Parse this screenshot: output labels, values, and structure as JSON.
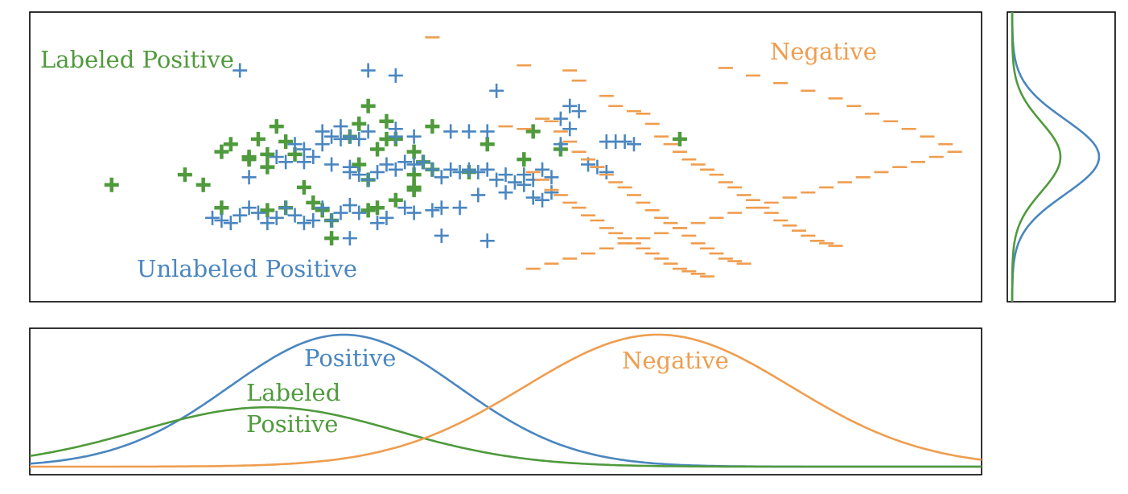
{
  "colors": {
    "labeled_positive": "#4f9a3c",
    "unlabeled_positive": "#4a86c0",
    "negative": "#ef9d4f",
    "axes": "#000000"
  },
  "chart_data": [
    {
      "type": "scatter",
      "grid": false,
      "ticks": false,
      "xlim": [
        0,
        100
      ],
      "ylim": [
        0,
        100
      ],
      "annotations": [
        {
          "text": "Labeled Positive",
          "series": "labeled_positive"
        },
        {
          "text": "Unlabeled Positive",
          "series": "unlabeled_positive"
        },
        {
          "text": "Negative",
          "series": "negative"
        }
      ],
      "series": [
        {
          "key": "labeled_positive",
          "marker": "plus-bold",
          "points": [
            [
              7,
              39
            ],
            [
              15,
              43
            ],
            [
              17,
              39
            ],
            [
              19,
              30
            ],
            [
              24,
              29
            ],
            [
              26,
              30
            ],
            [
              19,
              52
            ],
            [
              22,
              50
            ],
            [
              20,
              55
            ],
            [
              23,
              57
            ],
            [
              24,
              51
            ],
            [
              25,
              62
            ],
            [
              26,
              56
            ],
            [
              27,
              51
            ],
            [
              24,
              46
            ],
            [
              22,
              49
            ],
            [
              28,
              38
            ],
            [
              29,
              32
            ],
            [
              30,
              29
            ],
            [
              31,
              25
            ],
            [
              31,
              18
            ],
            [
              34,
              47
            ],
            [
              35,
              41
            ],
            [
              36,
              53
            ],
            [
              37,
              57
            ],
            [
              38,
              57
            ],
            [
              33,
              58
            ],
            [
              34,
              63
            ],
            [
              35,
              70
            ],
            [
              37,
              64
            ],
            [
              40,
              52
            ],
            [
              41,
              48
            ],
            [
              42,
              62
            ],
            [
              40,
              38
            ],
            [
              40,
              37
            ],
            [
              40,
              43
            ],
            [
              42,
              45
            ],
            [
              38,
              33
            ],
            [
              36,
              30
            ],
            [
              35,
              29
            ],
            [
              48,
              55
            ],
            [
              46,
              44
            ],
            [
              52,
              49
            ],
            [
              56,
              53
            ],
            [
              53,
              60
            ],
            [
              69,
              57
            ]
          ]
        },
        {
          "key": "unlabeled_positive",
          "marker": "plus",
          "points": [
            [
              21,
              84
            ],
            [
              35,
              84
            ],
            [
              38,
              82
            ],
            [
              49,
              76
            ],
            [
              58,
              68
            ],
            [
              57,
              70
            ],
            [
              56,
              65
            ],
            [
              57,
              61
            ],
            [
              56,
              55
            ],
            [
              48,
              60
            ],
            [
              46,
              60
            ],
            [
              44,
              60
            ],
            [
              40,
              58
            ],
            [
              38,
              58
            ],
            [
              35,
              60
            ],
            [
              34,
              57
            ],
            [
              33,
              58
            ],
            [
              32,
              57
            ],
            [
              31,
              58
            ],
            [
              30,
              55
            ],
            [
              28,
              53
            ],
            [
              28,
              48
            ],
            [
              26,
              48
            ],
            [
              25,
              50
            ],
            [
              22,
              42
            ],
            [
              27,
              55
            ],
            [
              29,
              50
            ],
            [
              31,
              47
            ],
            [
              33,
              46
            ],
            [
              33,
              44
            ],
            [
              34,
              43
            ],
            [
              35,
              41
            ],
            [
              36,
              44
            ],
            [
              37,
              47
            ],
            [
              38,
              45
            ],
            [
              39,
              48
            ],
            [
              40,
              47
            ],
            [
              41,
              48
            ],
            [
              42,
              45
            ],
            [
              43,
              42
            ],
            [
              44,
              45
            ],
            [
              45,
              44
            ],
            [
              46,
              45
            ],
            [
              47,
              44
            ],
            [
              48,
              45
            ],
            [
              49,
              41
            ],
            [
              50,
              43
            ],
            [
              51,
              40
            ],
            [
              52,
              43
            ],
            [
              53,
              41
            ],
            [
              54,
              45
            ],
            [
              55,
              42
            ],
            [
              55,
              36
            ],
            [
              54,
              33
            ],
            [
              53,
              34
            ],
            [
              52,
              39
            ],
            [
              50,
              36
            ],
            [
              47,
              35
            ],
            [
              45,
              30
            ],
            [
              43,
              30
            ],
            [
              42,
              29
            ],
            [
              40,
              28
            ],
            [
              39,
              30
            ],
            [
              37,
              26
            ],
            [
              36,
              24
            ],
            [
              34,
              28
            ],
            [
              33,
              31
            ],
            [
              32,
              28
            ],
            [
              31,
              25
            ],
            [
              30,
              30
            ],
            [
              29,
              25
            ],
            [
              28,
              24
            ],
            [
              27,
              27
            ],
            [
              26,
              30
            ],
            [
              25,
              26
            ],
            [
              24,
              24
            ],
            [
              23,
              28
            ],
            [
              22,
              30
            ],
            [
              21,
              27
            ],
            [
              20,
              24
            ],
            [
              19,
              25
            ],
            [
              18,
              26
            ],
            [
              33,
              18
            ],
            [
              43,
              19
            ],
            [
              48,
              17
            ],
            [
              30,
              60
            ],
            [
              32,
              62
            ],
            [
              38,
              61
            ],
            [
              61,
              56
            ],
            [
              62,
              56
            ],
            [
              60,
              46
            ],
            [
              59,
              47
            ],
            [
              61,
              44
            ],
            [
              63,
              56
            ],
            [
              64,
              55
            ]
          ]
        },
        {
          "key": "negative",
          "marker": "minus",
          "points": [
            [
              42,
              97
            ],
            [
              52,
              86
            ],
            [
              57,
              84
            ],
            [
              58,
              80
            ],
            [
              61,
              74
            ],
            [
              62,
              70
            ],
            [
              64,
              68
            ],
            [
              65,
              67
            ],
            [
              66,
              63
            ],
            [
              67,
              58
            ],
            [
              68,
              55
            ],
            [
              69,
              52
            ],
            [
              70,
              49
            ],
            [
              71,
              47
            ],
            [
              72,
              45
            ],
            [
              73,
              43
            ],
            [
              74,
              40
            ],
            [
              75,
              38
            ],
            [
              76,
              35
            ],
            [
              77,
              33
            ],
            [
              78,
              30
            ],
            [
              79,
              28
            ],
            [
              80,
              25
            ],
            [
              81,
              23
            ],
            [
              82,
              21
            ],
            [
              83,
              19
            ],
            [
              84,
              17
            ],
            [
              85,
              16
            ],
            [
              86,
              15
            ],
            [
              50,
              62
            ],
            [
              52,
              61
            ],
            [
              54,
              65
            ],
            [
              55,
              64
            ],
            [
              56,
              60
            ],
            [
              57,
              56
            ],
            [
              58,
              52
            ],
            [
              59,
              49
            ],
            [
              60,
              46
            ],
            [
              61,
              43
            ],
            [
              62,
              40
            ],
            [
              63,
              38
            ],
            [
              64,
              35
            ],
            [
              65,
              32
            ],
            [
              66,
              29
            ],
            [
              67,
              26
            ],
            [
              68,
              24
            ],
            [
              69,
              22
            ],
            [
              70,
              19
            ],
            [
              71,
              16
            ],
            [
              72,
              14
            ],
            [
              73,
              12
            ],
            [
              74,
              10
            ],
            [
              75,
              9
            ],
            [
              76,
              8
            ],
            [
              53,
              44
            ],
            [
              54,
              41
            ],
            [
              55,
              37
            ],
            [
              56,
              35
            ],
            [
              57,
              32
            ],
            [
              58,
              30
            ],
            [
              59,
              27
            ],
            [
              60,
              25
            ],
            [
              61,
              22
            ],
            [
              62,
              20
            ],
            [
              63,
              18
            ],
            [
              64,
              16
            ],
            [
              65,
              14
            ],
            [
              66,
              12
            ],
            [
              67,
              10
            ],
            [
              68,
              8
            ],
            [
              69,
              6
            ],
            [
              70,
              5
            ],
            [
              71,
              4
            ],
            [
              72,
              3
            ],
            [
              74,
              85
            ],
            [
              77,
              82
            ],
            [
              80,
              79
            ],
            [
              83,
              76
            ],
            [
              86,
              73
            ],
            [
              88,
              70
            ],
            [
              90,
              67
            ],
            [
              92,
              64
            ],
            [
              94,
              61
            ],
            [
              96,
              58
            ],
            [
              98,
              55
            ],
            [
              99,
              52
            ],
            [
              97,
              50
            ],
            [
              95,
              48
            ],
            [
              93,
              46
            ],
            [
              91,
              44
            ],
            [
              89,
              42
            ],
            [
              87,
              40
            ],
            [
              85,
              38
            ],
            [
              83,
              36
            ],
            [
              81,
              34
            ],
            [
              79,
              32
            ],
            [
              77,
              30
            ],
            [
              75,
              28
            ],
            [
              73,
              26
            ],
            [
              71,
              24
            ],
            [
              69,
              22
            ],
            [
              67,
              20
            ],
            [
              65,
              18
            ],
            [
              63,
              16
            ],
            [
              61,
              14
            ],
            [
              59,
              12
            ],
            [
              57,
              10
            ],
            [
              55,
              8
            ],
            [
              53,
              6
            ]
          ]
        }
      ]
    },
    {
      "type": "line",
      "grid": false,
      "ticks": false,
      "xlim": [
        0,
        100
      ],
      "ylim": [
        0,
        1.1
      ],
      "annotations": [
        {
          "text": "Positive",
          "series": "positive"
        },
        {
          "text": "Labeled",
          "series": "labeled_positive"
        },
        {
          "text": "Positive",
          "series": "labeled_positive"
        },
        {
          "text": "Negative",
          "series": "negative"
        }
      ],
      "series": [
        {
          "key": "positive",
          "mean": 33,
          "sd": 12,
          "amplitude": 1.0
        },
        {
          "key": "labeled_positive",
          "mean": 25,
          "sd": 13.5,
          "amplitude": 0.45
        },
        {
          "key": "negative",
          "mean": 66,
          "sd": 14,
          "amplitude": 1.0
        }
      ]
    },
    {
      "type": "line",
      "orientation": "vertical",
      "grid": false,
      "ticks": false,
      "ylim": [
        0,
        100
      ],
      "series": [
        {
          "key": "positive",
          "mean": 50,
          "sd": 13,
          "amplitude": 0.9
        },
        {
          "key": "labeled_positive",
          "mean": 50,
          "sd": 12,
          "amplitude": 0.5
        }
      ]
    }
  ]
}
